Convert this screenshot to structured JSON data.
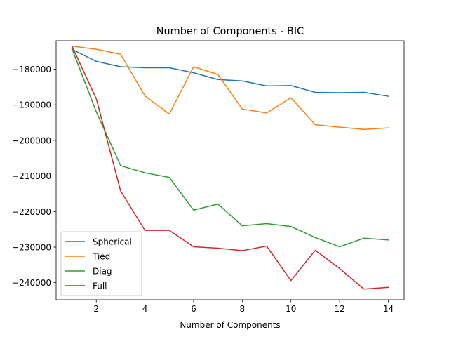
{
  "chart_data": {
    "type": "line",
    "title": "Number of Components - BIC",
    "xlabel": "Number of Components",
    "ylabel": "",
    "xlim": [
      0.35,
      14.65
    ],
    "ylim": [
      -244800,
      -172000
    ],
    "xticks": [
      2,
      4,
      6,
      8,
      10,
      12,
      14
    ],
    "yticks": [
      -240000,
      -230000,
      -220000,
      -210000,
      -200000,
      -190000,
      -180000
    ],
    "ytick_labels": [
      "−240000",
      "−230000",
      "−220000",
      "−210000",
      "−200000",
      "−190000",
      "−180000"
    ],
    "grid": false,
    "legend_position": "lower-left",
    "x": [
      1,
      2,
      3,
      4,
      5,
      6,
      7,
      8,
      9,
      10,
      11,
      12,
      13,
      14
    ],
    "series": [
      {
        "name": "Spherical",
        "color": "#1f77b4",
        "values": [
          -174400,
          -177800,
          -179300,
          -179600,
          -179600,
          -181000,
          -182900,
          -183300,
          -184700,
          -184600,
          -186500,
          -186600,
          -186500,
          -187600
        ]
      },
      {
        "name": "Tied",
        "color": "#ff7f0e",
        "values": [
          -173500,
          -174400,
          -175800,
          -187500,
          -192600,
          -179300,
          -181500,
          -191200,
          -192300,
          -188000,
          -195600,
          -196300,
          -196900,
          -196500
        ]
      },
      {
        "name": "Diag",
        "color": "#2ca02c",
        "values": [
          -174200,
          -192000,
          -207100,
          -209100,
          -210400,
          -219600,
          -217900,
          -224000,
          -223400,
          -224200,
          -227300,
          -229900,
          -227500,
          -228000
        ]
      },
      {
        "name": "Full",
        "color": "#d62728",
        "values": [
          -173500,
          -188300,
          -214200,
          -225300,
          -225300,
          -229900,
          -230300,
          -231000,
          -229700,
          -239400,
          -230900,
          -236000,
          -241800,
          -241300
        ]
      }
    ]
  }
}
